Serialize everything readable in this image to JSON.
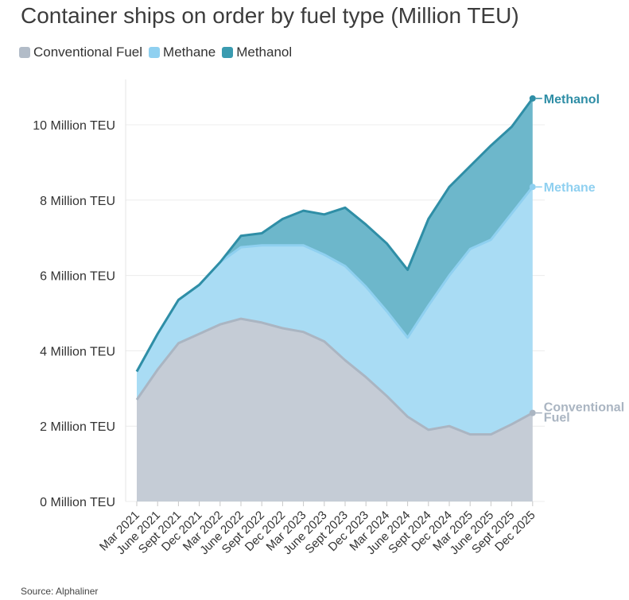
{
  "title": "Container ships on order by fuel type (Million TEU)",
  "source": "Source: Alphaliner",
  "legend": [
    {
      "label": "Conventional Fuel",
      "color": "#b2bcc8"
    },
    {
      "label": "Methane",
      "color": "#8fd0f0"
    },
    {
      "label": "Methanol",
      "color": "#3a9bb0"
    }
  ],
  "chart_data": {
    "type": "area",
    "stacked": true,
    "title": "Container ships on order by fuel type (Million TEU)",
    "x": [
      "Mar 2021",
      "June 2021",
      "Sept 2021",
      "Dec 2021",
      "Mar 2022",
      "June 2022",
      "Sept 2022",
      "Dec 2022",
      "Mar 2023",
      "June 2023",
      "Sept 2023",
      "Dec 2023",
      "Mar 2024",
      "June 2024",
      "Sept 2024",
      "Dec 2024",
      "Mar 2025",
      "June 2025",
      "Sept 2025",
      "Dec 2025"
    ],
    "yticks": [
      "0 Million TEU",
      "2 Million TEU",
      "4 Million TEU",
      "6 Million TEU",
      "8 Million TEU",
      "10 Million TEU"
    ],
    "ylim": [
      0,
      11
    ],
    "grid": true,
    "series": [
      {
        "name": "Conventional Fuel",
        "end_label": "Conventional Fuel",
        "color": "#b2bcc8",
        "fill": "#c5ccd6",
        "values": [
          2.7,
          3.5,
          4.2,
          4.45,
          4.7,
          4.85,
          4.75,
          4.6,
          4.5,
          4.25,
          3.75,
          3.3,
          2.8,
          2.25,
          1.9,
          2.0,
          1.78,
          1.78,
          2.05,
          2.35
        ]
      },
      {
        "name": "Methane",
        "end_label": "Methane",
        "color": "#8fd0f0",
        "fill": "#a9dcf4",
        "cumulative": [
          3.45,
          4.45,
          5.35,
          5.75,
          6.35,
          6.75,
          6.8,
          6.8,
          6.8,
          6.55,
          6.25,
          5.7,
          5.05,
          4.35,
          5.2,
          6.0,
          6.7,
          6.95,
          7.65,
          8.35
        ]
      },
      {
        "name": "Methanol",
        "end_label": "Methanol",
        "color": "#3a9bb0",
        "fill": "#6db7cb",
        "cumulative": [
          3.45,
          4.45,
          5.35,
          5.75,
          6.35,
          7.05,
          7.12,
          7.5,
          7.72,
          7.62,
          7.8,
          7.35,
          6.85,
          6.15,
          7.5,
          8.35,
          8.9,
          9.45,
          9.95,
          10.7
        ]
      }
    ]
  }
}
